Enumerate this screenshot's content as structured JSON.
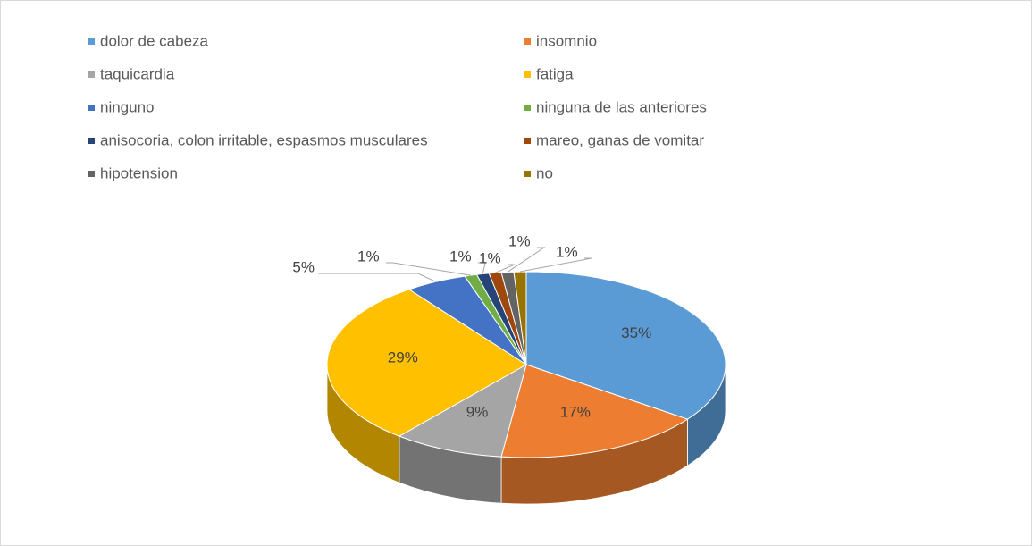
{
  "chart_data": {
    "type": "pie",
    "categories": [
      "dolor de cabeza",
      "insomnio",
      "taquicardia",
      "fatiga",
      "ninguno",
      "ninguna de las anteriores",
      "anisocoria, colon irritable, espasmos musculares",
      "mareo, ganas de vomitar",
      "hipotension",
      "no"
    ],
    "values": [
      35,
      17,
      9,
      29,
      5,
      1,
      1,
      1,
      1,
      1
    ],
    "value_labels": [
      "35%",
      "17%",
      "9%",
      "29%",
      "5%",
      "1%",
      "1%",
      "1%",
      "1%",
      "1%"
    ],
    "colors": [
      "#5b9bd5",
      "#ed7d31",
      "#a5a5a5",
      "#ffc000",
      "#4472c4",
      "#70ad47",
      "#264478",
      "#9e480e",
      "#636363",
      "#997300"
    ],
    "legend": "top"
  }
}
